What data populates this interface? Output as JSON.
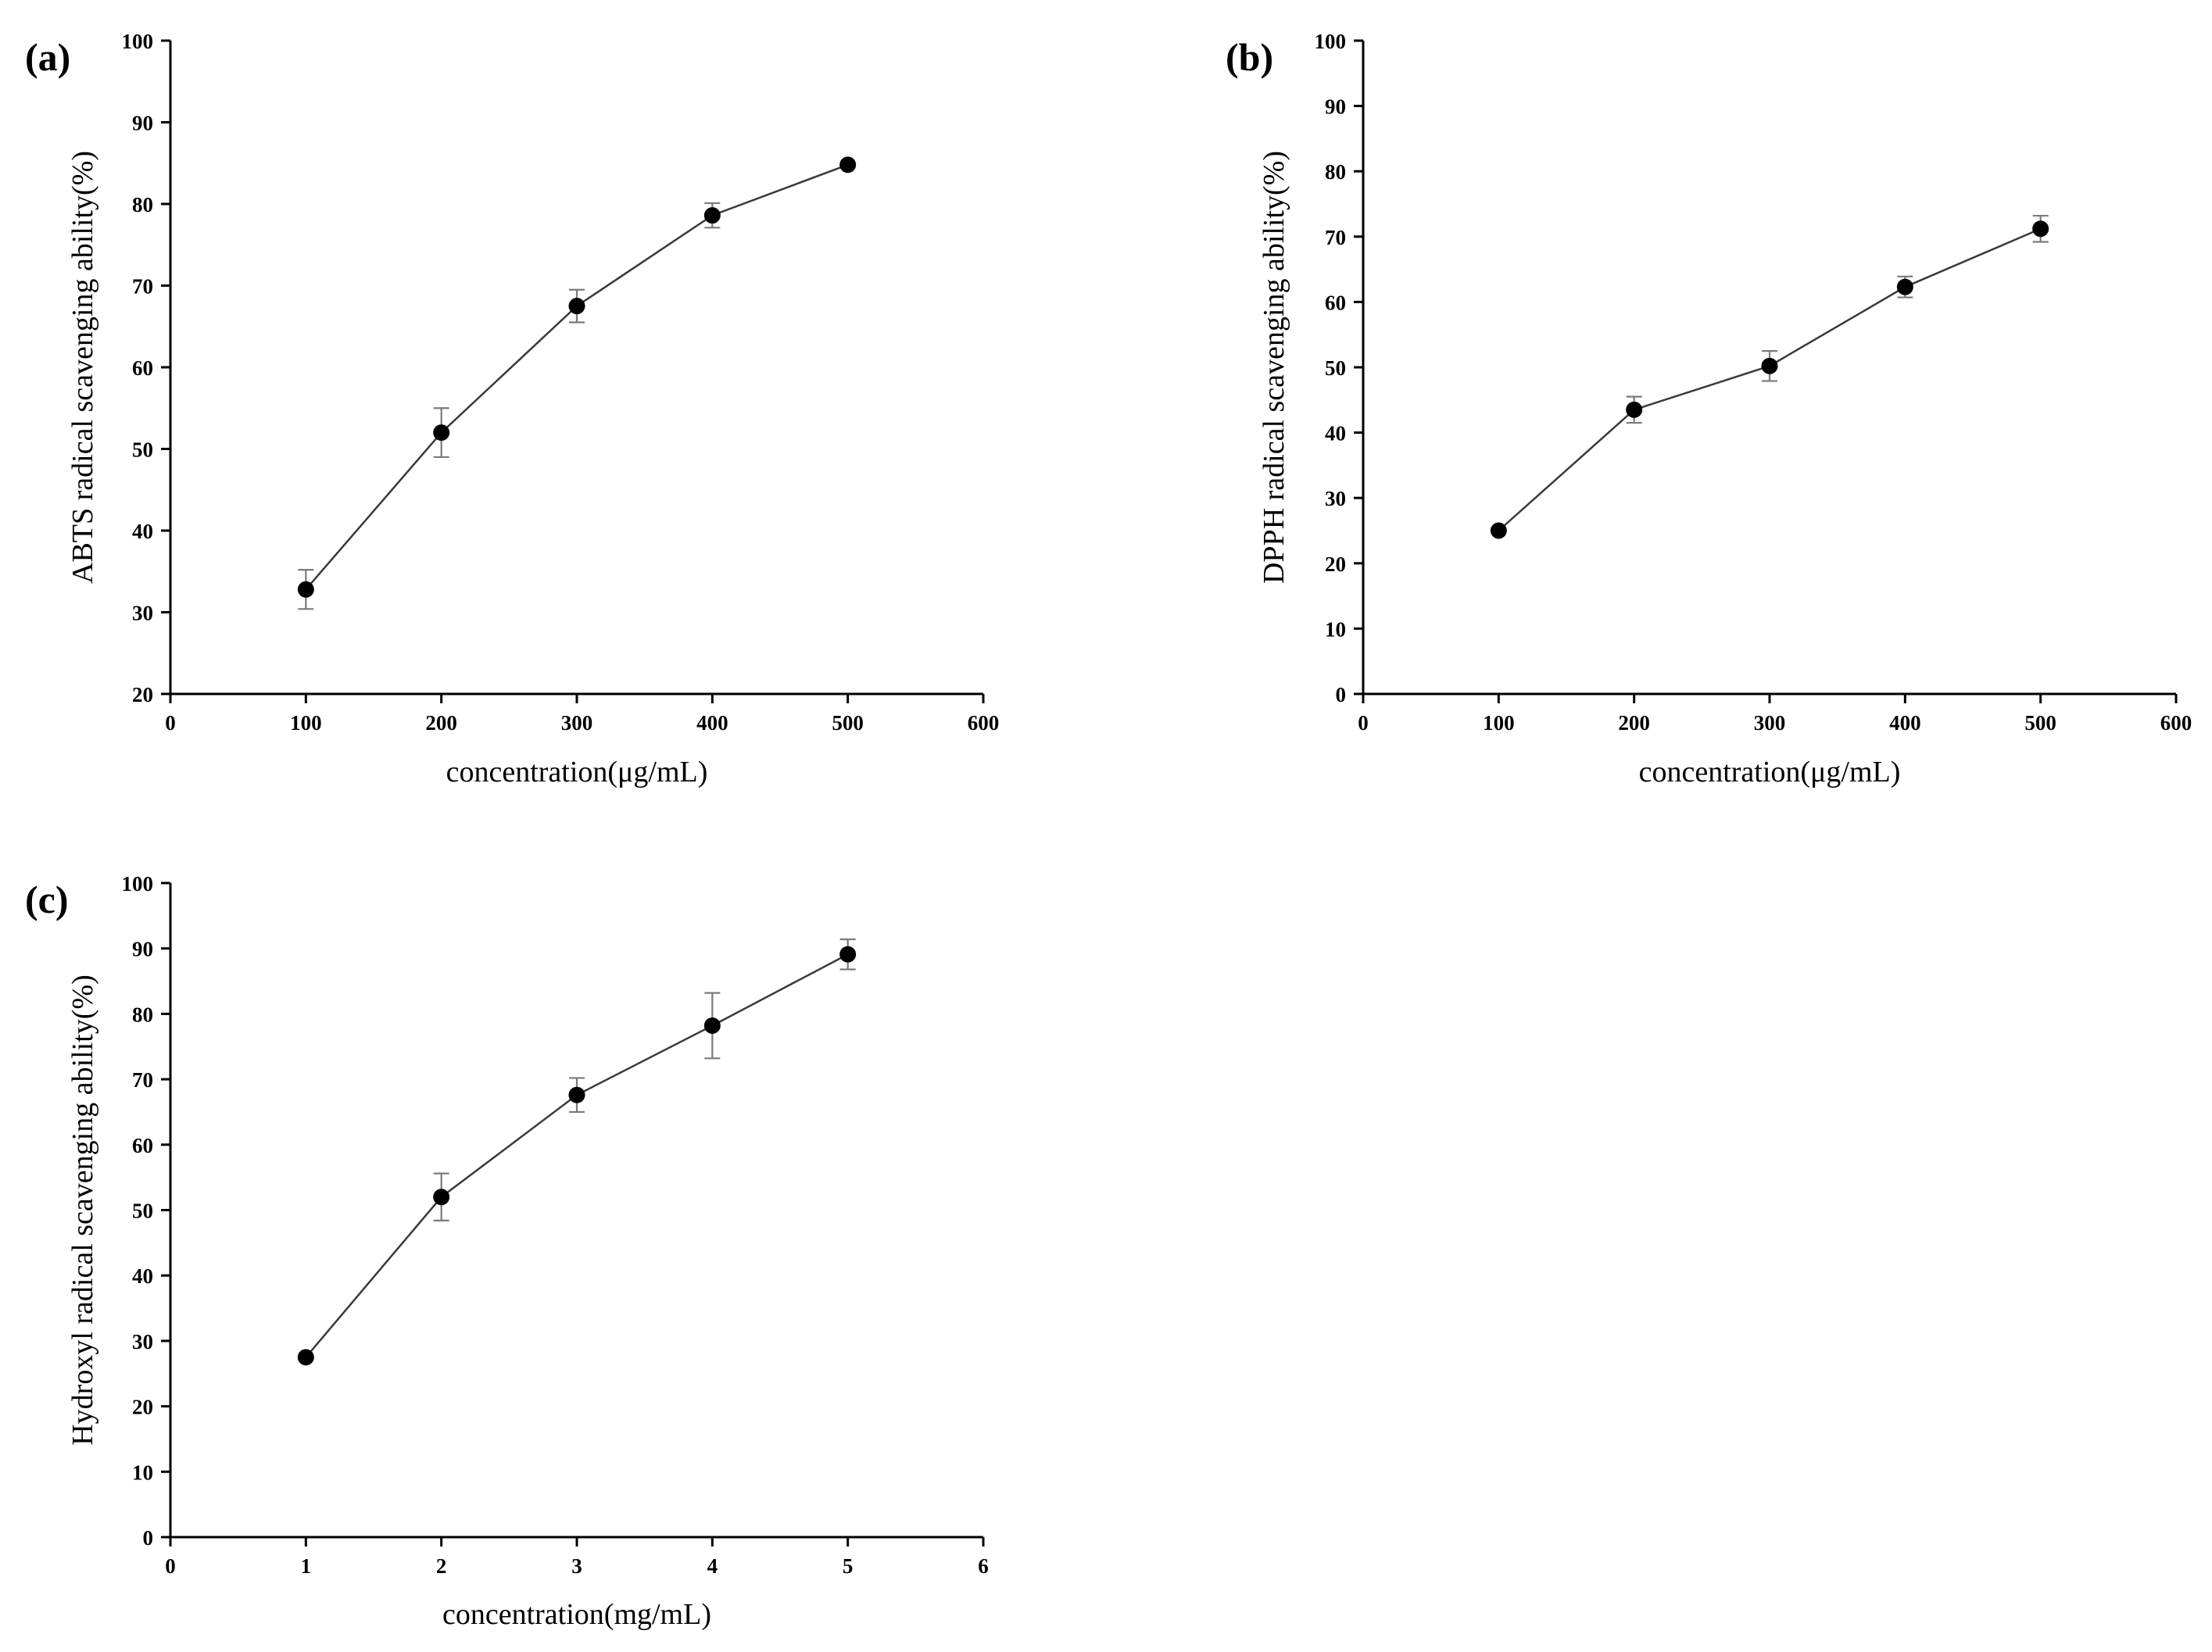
{
  "chart_data": [
    {
      "type": "line",
      "panel_label": "(a)",
      "xlabel": "concentration(μg/mL)",
      "ylabel": "ABTS radical scavenging ability(%)",
      "xlim": [
        0,
        600
      ],
      "ylim": [
        20,
        100
      ],
      "x_ticks": [
        0,
        100,
        200,
        300,
        400,
        500,
        600
      ],
      "y_ticks": [
        20,
        30,
        40,
        50,
        60,
        70,
        80,
        90,
        100
      ],
      "grid": false,
      "series": [
        {
          "x": [
            100,
            200,
            300,
            400,
            500
          ],
          "values": [
            32.8,
            52.0,
            67.5,
            78.6,
            84.8
          ],
          "errors": [
            2.4,
            3.0,
            2.0,
            1.5,
            0.5
          ]
        }
      ]
    },
    {
      "type": "line",
      "panel_label": "(b)",
      "xlabel": "concentration(μg/mL)",
      "ylabel": "DPPH radical scavenging ability(%)",
      "xlim": [
        0,
        600
      ],
      "ylim": [
        0,
        100
      ],
      "x_ticks": [
        0,
        100,
        200,
        300,
        400,
        500,
        600
      ],
      "y_ticks": [
        0,
        10,
        20,
        30,
        40,
        50,
        60,
        70,
        80,
        90,
        100
      ],
      "grid": false,
      "series": [
        {
          "x": [
            100,
            200,
            300,
            400,
            500
          ],
          "values": [
            25.0,
            43.5,
            50.2,
            62.3,
            71.2
          ],
          "errors": [
            0.5,
            2.0,
            2.3,
            1.6,
            2.0
          ]
        }
      ]
    },
    {
      "type": "line",
      "panel_label": "(c)",
      "xlabel": "concentration(mg/mL)",
      "ylabel": "Hydroxyl radical scavenging ability(%)",
      "xlim": [
        0,
        6
      ],
      "ylim": [
        0,
        100
      ],
      "x_ticks": [
        0,
        1,
        2,
        3,
        4,
        5,
        6
      ],
      "y_ticks": [
        0,
        10,
        20,
        30,
        40,
        50,
        60,
        70,
        80,
        90,
        100
      ],
      "grid": false,
      "series": [
        {
          "x": [
            1,
            2,
            3,
            4,
            5
          ],
          "values": [
            27.5,
            52.0,
            67.6,
            78.2,
            89.1
          ],
          "errors": [
            0.5,
            3.6,
            2.6,
            5.0,
            2.3
          ]
        }
      ]
    }
  ]
}
